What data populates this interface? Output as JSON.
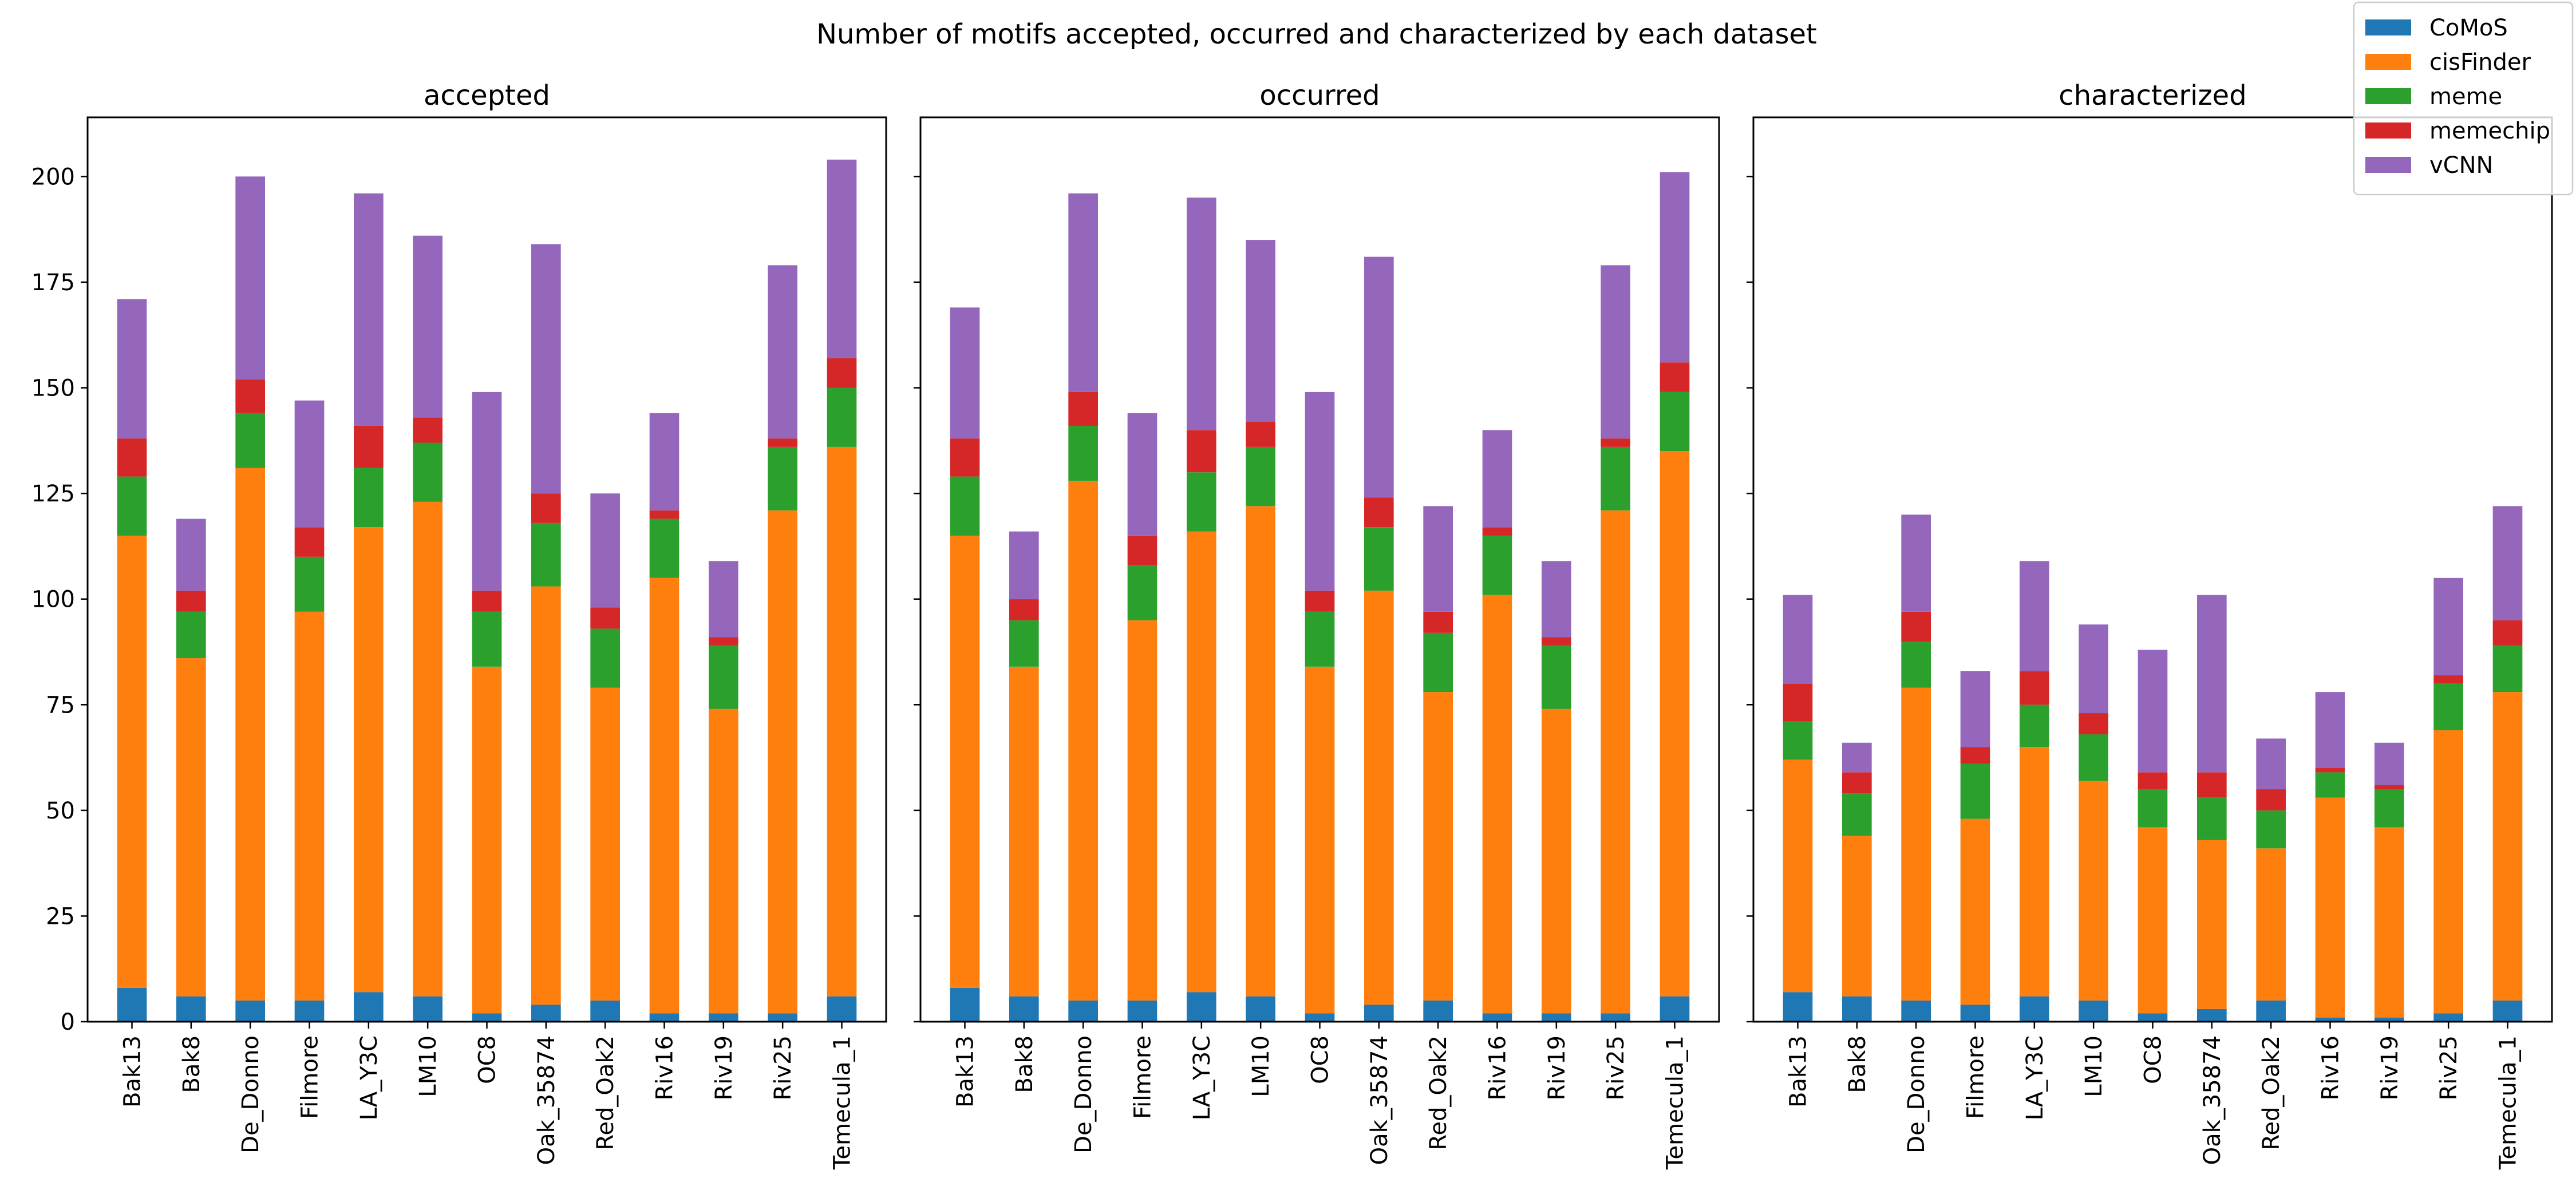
{
  "colors": {
    "CoMoS": "#1f77b4",
    "cisFinder": "#ff7f0e",
    "meme": "#2ca02c",
    "memechip": "#d62728",
    "vCNN": "#9467bd"
  },
  "chart_data": {
    "type": "bar",
    "stacked": true,
    "title": "Number of motifs accepted, occurred and characterized by each dataset",
    "legend": {
      "placement": "top-right",
      "entries": [
        "CoMoS",
        "cisFinder",
        "meme",
        "memechip",
        "vCNN"
      ]
    },
    "categories": [
      "Bak13",
      "Bak8",
      "De_Donno",
      "Filmore",
      "LA_Y3C",
      "LM10",
      "OC8",
      "Oak_35874",
      "Red_Oak2",
      "Riv16",
      "Riv19",
      "Riv25",
      "Temecula_1"
    ],
    "ylim": [
      0,
      214
    ],
    "yticks": [
      0,
      25,
      50,
      75,
      100,
      125,
      150,
      175,
      200
    ],
    "grid": false,
    "sharey": true,
    "panels": [
      {
        "title": "accepted",
        "series": [
          {
            "name": "CoMoS",
            "values": [
              8,
              6,
              5,
              5,
              7,
              6,
              2,
              4,
              5,
              2,
              2,
              2,
              6
            ]
          },
          {
            "name": "cisFinder",
            "values": [
              107,
              80,
              126,
              92,
              110,
              117,
              82,
              99,
              74,
              103,
              72,
              119,
              130
            ]
          },
          {
            "name": "meme",
            "values": [
              14,
              11,
              13,
              13,
              14,
              14,
              13,
              15,
              14,
              14,
              15,
              15,
              14
            ]
          },
          {
            "name": "memechip",
            "values": [
              9,
              5,
              8,
              7,
              10,
              6,
              5,
              7,
              5,
              2,
              2,
              2,
              7
            ]
          },
          {
            "name": "vCNN",
            "values": [
              33,
              17,
              48,
              30,
              55,
              43,
              47,
              59,
              27,
              23,
              18,
              41,
              47
            ]
          }
        ]
      },
      {
        "title": "occurred",
        "series": [
          {
            "name": "CoMoS",
            "values": [
              8,
              6,
              5,
              5,
              7,
              6,
              2,
              4,
              5,
              2,
              2,
              2,
              6
            ]
          },
          {
            "name": "cisFinder",
            "values": [
              107,
              78,
              123,
              90,
              109,
              116,
              82,
              98,
              73,
              99,
              72,
              119,
              129
            ]
          },
          {
            "name": "meme",
            "values": [
              14,
              11,
              13,
              13,
              14,
              14,
              13,
              15,
              14,
              14,
              15,
              15,
              14
            ]
          },
          {
            "name": "memechip",
            "values": [
              9,
              5,
              8,
              7,
              10,
              6,
              5,
              7,
              5,
              2,
              2,
              2,
              7
            ]
          },
          {
            "name": "vCNN",
            "values": [
              31,
              16,
              47,
              29,
              55,
              43,
              47,
              57,
              25,
              23,
              18,
              41,
              45
            ]
          }
        ]
      },
      {
        "title": "characterized",
        "series": [
          {
            "name": "CoMoS",
            "values": [
              7,
              6,
              5,
              4,
              6,
              5,
              2,
              3,
              5,
              1,
              1,
              2,
              5
            ]
          },
          {
            "name": "cisFinder",
            "values": [
              55,
              38,
              74,
              44,
              59,
              52,
              44,
              40,
              36,
              52,
              45,
              67,
              73
            ]
          },
          {
            "name": "meme",
            "values": [
              9,
              10,
              11,
              13,
              10,
              11,
              9,
              10,
              9,
              6,
              9,
              11,
              11
            ]
          },
          {
            "name": "memechip",
            "values": [
              9,
              5,
              7,
              4,
              8,
              5,
              4,
              6,
              5,
              1,
              1,
              2,
              6
            ]
          },
          {
            "name": "vCNN",
            "values": [
              21,
              7,
              23,
              18,
              26,
              21,
              29,
              42,
              12,
              18,
              10,
              23,
              27
            ]
          }
        ]
      }
    ]
  }
}
